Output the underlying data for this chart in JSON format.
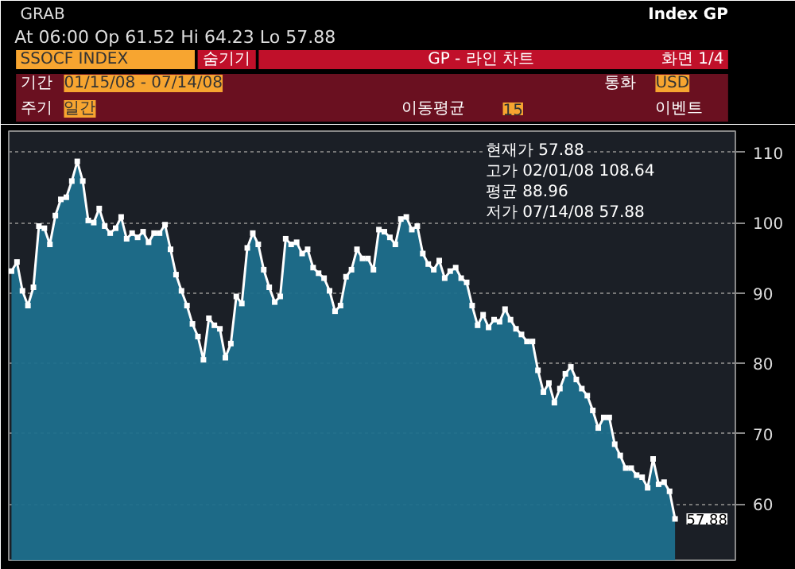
{
  "chart_data": {
    "type": "area",
    "title": "GRAB",
    "subtitle": "At 06:00  Op 61.52  Hi 64.23  Lo 57.88",
    "categories": [
      null,
      null,
      null,
      null,
      null,
      null,
      null,
      null,
      null,
      null,
      null,
      null,
      null,
      null,
      null,
      null,
      null,
      null,
      null,
      null,
      null,
      null,
      null,
      null,
      null,
      null,
      null,
      null,
      null,
      null,
      null,
      null,
      null,
      null,
      null,
      null,
      null,
      null,
      null,
      null,
      null,
      null,
      null,
      null,
      null,
      null,
      null,
      null,
      null,
      null,
      null,
      null,
      null,
      null,
      null,
      null,
      null,
      null,
      null,
      null,
      null,
      null,
      null,
      null,
      null,
      null,
      null,
      null,
      null,
      null,
      null,
      null,
      null,
      null,
      null,
      null,
      null,
      null,
      null,
      null,
      null,
      null,
      null,
      null,
      null,
      null,
      null,
      null,
      null,
      null,
      null,
      null,
      null,
      null,
      null,
      null,
      null,
      null,
      null,
      null,
      null,
      null,
      null,
      null,
      null,
      null,
      null,
      null,
      null,
      null,
      null,
      null,
      null,
      null,
      null,
      null,
      null,
      null,
      null,
      null,
      null,
      null
    ],
    "series": [
      {
        "color": "#1d6f8c",
        "values": [
          93.1,
          94.4,
          90.3,
          88.2,
          90.8,
          99.5,
          99.2,
          96.9,
          101,
          103.3,
          103.6,
          105.9,
          108.7,
          105.9,
          100.3,
          100,
          102,
          99.5,
          98.5,
          99.2,
          100.8,
          97.7,
          98.5,
          97.9,
          98.7,
          97.2,
          98.5,
          98.5,
          99.7,
          96.2,
          92.6,
          90.3,
          88.2,
          85.6,
          83.8,
          80.5,
          86.4,
          85.4,
          84.9,
          80.8,
          82.8,
          89.5,
          88.5,
          96.4,
          98.5,
          96.9,
          93.3,
          90.8,
          88.7,
          89.5,
          97.7,
          96.9,
          97.2,
          95.6,
          96.2,
          93.6,
          92.8,
          92.1,
          90.3,
          87.4,
          88.2,
          92.3,
          93.3,
          96.2,
          94.9,
          94.9,
          93.3,
          99,
          98.7,
          97.9,
          96.9,
          100.5,
          100.8,
          99,
          99.5,
          95.6,
          94.1,
          93.3,
          94.6,
          92.1,
          93.1,
          93.6,
          92.1,
          91.5,
          88.2,
          85.4,
          86.9,
          85.1,
          86.2,
          85.9,
          87.7,
          86.2,
          84.9,
          84.1,
          83.1,
          83.1,
          79,
          75.9,
          77.2,
          74.4,
          76.4,
          78.5,
          79.5,
          77.7,
          76.4,
          75.4,
          73.3,
          70.8,
          72.3,
          72.3,
          68.5,
          66.9,
          65.1,
          65.1,
          64.1,
          63.8,
          62.3,
          66.4,
          62.8,
          63.1,
          61.8,
          57.88
        ]
      }
    ],
    "ylim": [
      52,
      113
    ],
    "yticks": [
      60,
      70,
      80,
      90,
      100,
      110
    ],
    "grid": "y",
    "marker": "square",
    "line_style": "solid",
    "annotations": [
      "SSOCF INDEX",
      "숨기기",
      "Index GP",
      "GP - 라인 차트",
      "화면 1/4",
      "기간",
      "01/15/08 - 07/14/08",
      "통화",
      "USD",
      "주기",
      "일간",
      "이동평균",
      "15",
      "이벤트",
      "현재가 57.88",
      "고가 02/01/08 108.64",
      "평균 88.96",
      "저가 07/14/08 57.88",
      "57.88"
    ]
  }
}
